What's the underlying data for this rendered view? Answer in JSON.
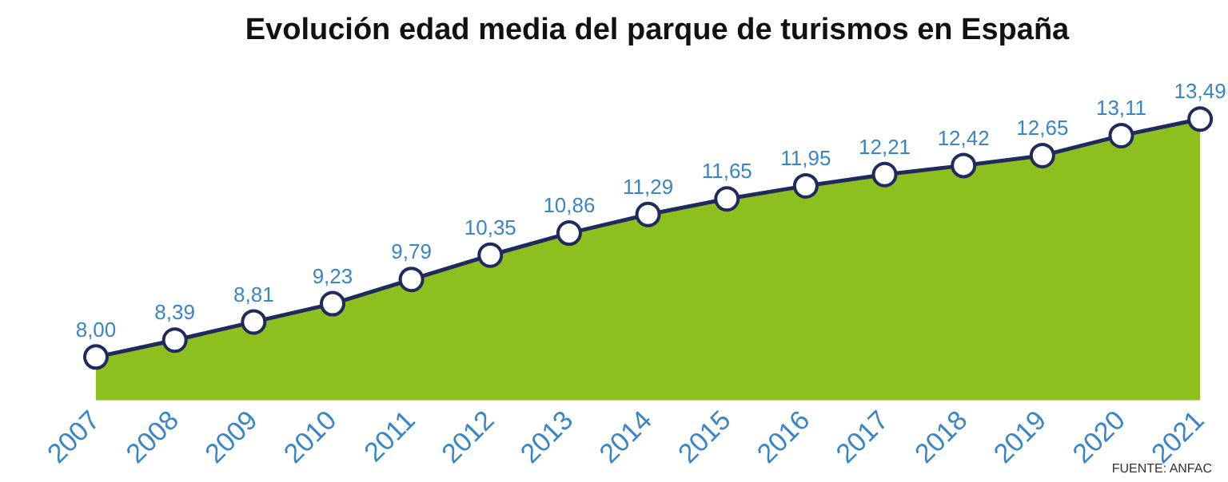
{
  "chart_data": {
    "type": "area",
    "title": "Evolución edad media del parque de turismos en España",
    "categories": [
      "2007",
      "2008",
      "2009",
      "2010",
      "2011",
      "2012",
      "2013",
      "2014",
      "2015",
      "2016",
      "2017",
      "2018",
      "2019",
      "2020",
      "2021"
    ],
    "series": [
      {
        "type": "area",
        "color": "#8dbf1f",
        "values": [
          8.0,
          8.39,
          8.81,
          9.23,
          9.79,
          10.35,
          10.86,
          11.29,
          11.65,
          11.95,
          12.21,
          12.42,
          12.65,
          13.11,
          13.49
        ]
      },
      {
        "type": "line",
        "color": "#1e2b5c",
        "marker": "circle",
        "values": [
          8.0,
          8.39,
          8.81,
          9.23,
          9.79,
          10.35,
          10.86,
          11.29,
          11.65,
          11.95,
          12.21,
          12.42,
          12.65,
          13.11,
          13.49
        ],
        "value_labels": [
          "8,00",
          "8,39",
          "8,81",
          "9,23",
          "9,79",
          "10,35",
          "10,86",
          "11,29",
          "11,65",
          "11,95",
          "12,21",
          "12,42",
          "12,65",
          "13,11",
          "13,49"
        ]
      }
    ],
    "tick_labels": "x",
    "grid": false,
    "legend": false,
    "annotations": [
      "FUENTE: ANFAC"
    ]
  }
}
